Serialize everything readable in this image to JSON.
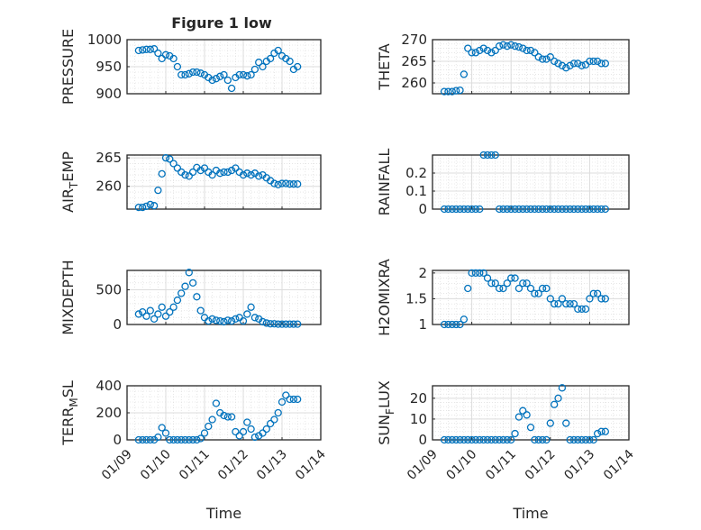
{
  "figure_title": "Figure 1 low",
  "chart_data": [
    {
      "type": "scatter",
      "ylabel": "PRESSURE",
      "ylim": [
        900,
        1000
      ],
      "yticks": [
        900,
        950,
        1000
      ],
      "ytick_labels": [
        "900",
        "950",
        "1000"
      ],
      "xlabel": "",
      "values": [
        980,
        981,
        982,
        982,
        983,
        975,
        965,
        972,
        970,
        965,
        950,
        935,
        935,
        937,
        940,
        940,
        938,
        935,
        930,
        925,
        928,
        932,
        935,
        925,
        910,
        930,
        935,
        935,
        933,
        935,
        945,
        958,
        950,
        960,
        965,
        975,
        980,
        970,
        965,
        960,
        945,
        950
      ]
    },
    {
      "type": "scatter",
      "ylabel": "THETA",
      "ylim": [
        257.5,
        270
      ],
      "yticks": [
        260,
        265,
        270
      ],
      "ytick_labels": [
        "260",
        "265",
        "270"
      ],
      "xlabel": "",
      "values": [
        258,
        258,
        258,
        258.2,
        258.3,
        262,
        268,
        267,
        267,
        267.5,
        268,
        267.5,
        267,
        267.5,
        268.5,
        268.8,
        268.5,
        268.8,
        268.5,
        268.3,
        268,
        267.5,
        267.5,
        267,
        266,
        265.5,
        265.5,
        266,
        265,
        264.5,
        264,
        263.5,
        264,
        264.5,
        264.5,
        264,
        264.2,
        265,
        265,
        265,
        264.5,
        264.5
      ]
    },
    {
      "type": "scatter",
      "ylabel": "AIR_TEMP",
      "ylim": [
        256,
        265.5
      ],
      "yticks": [
        260,
        265
      ],
      "ytick_labels": [
        "260",
        "265"
      ],
      "xlabel": "",
      "values": [
        256.3,
        256.3,
        256.5,
        256.8,
        256.6,
        259.3,
        262.2,
        265,
        264.8,
        264,
        263.2,
        262.5,
        262,
        261.8,
        262.5,
        263.3,
        262.8,
        263.2,
        262.5,
        262,
        262.8,
        262.3,
        262.5,
        262.5,
        262.8,
        263.2,
        262.5,
        262,
        262.3,
        262,
        262.3,
        261.8,
        262,
        261.5,
        261,
        260.5,
        260.3,
        260.5,
        260.5,
        260.4,
        260.4,
        260.4
      ]
    },
    {
      "type": "scatter",
      "ylabel": "RAINFALL",
      "ylim": [
        0,
        0.3
      ],
      "yticks": [
        0,
        0.1,
        0.2
      ],
      "ytick_labels": [
        "0",
        "0.1",
        "0.2"
      ],
      "xlabel": "",
      "values": [
        0,
        0,
        0,
        0,
        0,
        0,
        0,
        0,
        0,
        0,
        0.3,
        0.3,
        0.3,
        0.3,
        0,
        0,
        0,
        0,
        0,
        0,
        0,
        0,
        0,
        0,
        0,
        0,
        0,
        0,
        0,
        0,
        0,
        0,
        0,
        0,
        0,
        0,
        0,
        0,
        0,
        0,
        0,
        0
      ]
    },
    {
      "type": "scatter",
      "ylabel": "MIXDEPTH",
      "ylim": [
        0,
        780
      ],
      "yticks": [
        0,
        500
      ],
      "ytick_labels": [
        "0",
        "500"
      ],
      "xlabel": "",
      "values": [
        150,
        180,
        120,
        200,
        80,
        150,
        250,
        120,
        180,
        250,
        350,
        450,
        550,
        750,
        600,
        400,
        200,
        100,
        50,
        80,
        60,
        50,
        40,
        60,
        50,
        80,
        100,
        50,
        150,
        250,
        100,
        80,
        40,
        20,
        10,
        10,
        5,
        5,
        5,
        5,
        5,
        5
      ]
    },
    {
      "type": "scatter",
      "ylabel": "H2OMIXRA",
      "ylim": [
        1,
        2.05
      ],
      "yticks": [
        1,
        1.5,
        2
      ],
      "ytick_labels": [
        "1",
        "1.5",
        "2"
      ],
      "xlabel": "",
      "values": [
        1,
        1,
        1,
        1,
        1,
        1.1,
        1.7,
        2,
        2,
        2,
        2,
        1.9,
        1.8,
        1.8,
        1.7,
        1.7,
        1.8,
        1.9,
        1.9,
        1.7,
        1.8,
        1.8,
        1.7,
        1.6,
        1.6,
        1.7,
        1.7,
        1.5,
        1.4,
        1.4,
        1.5,
        1.4,
        1.4,
        1.4,
        1.3,
        1.3,
        1.3,
        1.5,
        1.6,
        1.6,
        1.5,
        1.5
      ]
    },
    {
      "type": "scatter",
      "ylabel": "TERR_MSL",
      "ylim": [
        0,
        400
      ],
      "yticks": [
        0,
        200,
        400
      ],
      "ytick_labels": [
        "0",
        "200",
        "400"
      ],
      "xlabel": "Time",
      "values": [
        0,
        0,
        0,
        0,
        0,
        20,
        90,
        50,
        0,
        0,
        0,
        0,
        0,
        0,
        0,
        0,
        10,
        50,
        100,
        150,
        270,
        200,
        180,
        170,
        170,
        60,
        30,
        60,
        130,
        80,
        20,
        30,
        50,
        80,
        120,
        150,
        200,
        280,
        330,
        300,
        300,
        300
      ]
    },
    {
      "type": "scatter",
      "ylabel": "SUN_FLUX",
      "ylim": [
        0,
        26
      ],
      "yticks": [
        0,
        10,
        20
      ],
      "ytick_labels": [
        "0",
        "10",
        "20"
      ],
      "xlabel": "Time",
      "values": [
        0,
        0,
        0,
        0,
        0,
        0,
        0,
        0,
        0,
        0,
        0,
        0,
        0,
        0,
        0,
        0,
        0,
        0,
        3,
        11,
        14,
        12,
        6,
        0,
        0,
        0,
        0,
        8,
        17,
        20,
        25,
        8,
        0,
        0,
        0,
        0,
        0,
        0,
        0,
        3,
        4,
        4
      ]
    }
  ],
  "x": [
    0.3,
    0.4,
    0.5,
    0.6,
    0.7,
    0.8,
    0.9,
    1.0,
    1.1,
    1.2,
    1.3,
    1.4,
    1.5,
    1.6,
    1.7,
    1.8,
    1.9,
    2.0,
    2.1,
    2.2,
    2.3,
    2.4,
    2.5,
    2.6,
    2.7,
    2.8,
    2.9,
    3.0,
    3.1,
    3.2,
    3.3,
    3.4,
    3.5,
    3.6,
    3.7,
    3.8,
    3.9,
    4.0,
    4.1,
    4.2,
    4.3,
    4.4
  ],
  "x_units": "days since 01/09",
  "xlim": [
    0,
    5
  ],
  "xtick_labels": [
    "01/09",
    "01/10",
    "01/11",
    "01/12",
    "01/13",
    "01/14"
  ],
  "marker_color": "#0072BD"
}
